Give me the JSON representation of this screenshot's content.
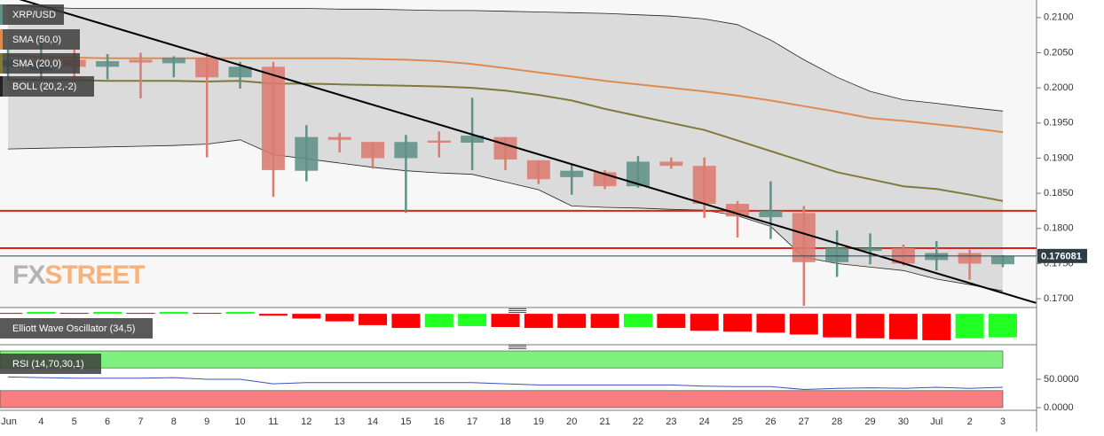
{
  "branding": {
    "watermark_left": "FX",
    "watermark_right": "STREET"
  },
  "chart_data": [
    {
      "type": "candlestick",
      "categories": [
        "Jun",
        "4",
        "5",
        "6",
        "7",
        "8",
        "9",
        "10",
        "11",
        "12",
        "13",
        "14",
        "15",
        "16",
        "17",
        "18",
        "19",
        "20",
        "21",
        "22",
        "23",
        "24",
        "25",
        "26",
        "27",
        "28",
        "29",
        "30",
        "Jul",
        "2",
        "3"
      ],
      "ylim": [
        0.169,
        0.2125
      ],
      "yticks": [
        {
          "value": 0.17,
          "label": "0.1700"
        },
        {
          "value": 0.175,
          "label": "0.1750"
        },
        {
          "value": 0.18,
          "label": "0.1800"
        },
        {
          "value": 0.185,
          "label": "0.1850"
        },
        {
          "value": 0.19,
          "label": "0.1900"
        },
        {
          "value": 0.195,
          "label": "0.1950"
        },
        {
          "value": 0.2,
          "label": "0.2000"
        },
        {
          "value": 0.205,
          "label": "0.2050"
        },
        {
          "value": 0.21,
          "label": "0.2100"
        }
      ],
      "last_price": 0.176081,
      "last_price_color": "#2f3e46",
      "hlines": [
        {
          "value": 0.1825,
          "color": "#e0201b"
        },
        {
          "value": 0.1772,
          "color": "#e0201b"
        }
      ],
      "trendline": {
        "x": [
          0,
          31
        ],
        "y": [
          0.2131,
          0.1694
        ],
        "color": "#000000"
      },
      "series": [
        {
          "name": "XRP/USD",
          "up_color": "#5e9188",
          "down_color": "#dc7b6f",
          "open": [
            0.203,
            0.2025,
            0.204,
            0.203,
            0.204,
            0.2035,
            0.2042,
            0.2015,
            0.203,
            0.1882,
            0.193,
            0.1923,
            0.19,
            0.1925,
            0.1922,
            0.193,
            0.1897,
            0.1873,
            0.188,
            0.186,
            0.1895,
            0.1889,
            0.1835,
            0.1816,
            0.1822,
            0.1752,
            0.1768,
            0.1772,
            0.1755,
            0.1765,
            0.1749
          ],
          "high": [
            0.2055,
            0.2065,
            0.2055,
            0.2048,
            0.205,
            0.2045,
            0.205,
            0.2037,
            0.2037,
            0.1947,
            0.1936,
            0.1923,
            0.1933,
            0.1938,
            0.1986,
            0.193,
            0.1897,
            0.1891,
            0.1883,
            0.1903,
            0.1901,
            0.1901,
            0.1839,
            0.1867,
            0.1832,
            0.1797,
            0.1793,
            0.1777,
            0.1782,
            0.177,
            0.1762
          ],
          "low": [
            0.201,
            0.201,
            0.2005,
            0.2012,
            0.1985,
            0.2015,
            0.1901,
            0.1999,
            0.1845,
            0.1867,
            0.1908,
            0.1885,
            0.1822,
            0.1901,
            0.1883,
            0.1883,
            0.1863,
            0.1848,
            0.1856,
            0.1858,
            0.1885,
            0.1815,
            0.1787,
            0.1785,
            0.169,
            0.1731,
            0.1749,
            0.1747,
            0.174,
            0.1727,
            0.1745
          ],
          "close": [
            0.204,
            0.2035,
            0.203,
            0.2038,
            0.2036,
            0.2043,
            0.2015,
            0.203,
            0.1883,
            0.193,
            0.1926,
            0.19,
            0.1923,
            0.1922,
            0.1932,
            0.1898,
            0.187,
            0.1882,
            0.186,
            0.1895,
            0.1889,
            0.1835,
            0.1817,
            0.1825,
            0.1752,
            0.1772,
            0.1772,
            0.175,
            0.1765,
            0.175,
            0.1761
          ]
        },
        {
          "name": "SMA (50,0)",
          "color": "#e08a4f",
          "values": [
            0.2046,
            0.2044,
            0.2043,
            0.2042,
            0.2042,
            0.2042,
            0.2042,
            0.2042,
            0.2042,
            0.2042,
            0.2042,
            0.2041,
            0.204,
            0.2038,
            0.2034,
            0.2028,
            0.2022,
            0.2016,
            0.201,
            0.2005,
            0.2,
            0.1995,
            0.1989,
            0.1982,
            0.1974,
            0.1966,
            0.1957,
            0.1953,
            0.1948,
            0.1943,
            0.1937
          ]
        },
        {
          "name": "SMA (20,0)",
          "color": "#7f7a3c",
          "values": [
            0.2012,
            0.2011,
            0.2011,
            0.201,
            0.201,
            0.201,
            0.2009,
            0.201,
            0.2006,
            0.2006,
            0.2005,
            0.2004,
            0.2003,
            0.2002,
            0.2,
            0.1996,
            0.199,
            0.1982,
            0.197,
            0.196,
            0.195,
            0.194,
            0.1925,
            0.191,
            0.1895,
            0.188,
            0.187,
            0.186,
            0.1856,
            0.1848,
            0.1839
          ]
        },
        {
          "name": "BOLL (20,2,-2)",
          "color": "#222222",
          "fill": "#d6d6d6",
          "upper": [
            0.2118,
            0.2115,
            0.2113,
            0.2113,
            0.2113,
            0.2113,
            0.2113,
            0.2113,
            0.2113,
            0.2113,
            0.2112,
            0.2112,
            0.2111,
            0.211,
            0.211,
            0.2109,
            0.2108,
            0.2107,
            0.2106,
            0.2104,
            0.2102,
            0.2098,
            0.209,
            0.2068,
            0.204,
            0.2015,
            0.1995,
            0.1983,
            0.1978,
            0.1972,
            0.1967
          ],
          "lower": [
            0.1913,
            0.1914,
            0.1915,
            0.1916,
            0.1917,
            0.1918,
            0.192,
            0.1926,
            0.1905,
            0.1899,
            0.1893,
            0.1887,
            0.1882,
            0.1879,
            0.1877,
            0.1866,
            0.1855,
            0.1832,
            0.183,
            0.1829,
            0.1827,
            0.1826,
            0.1818,
            0.1803,
            0.1759,
            0.175,
            0.1745,
            0.174,
            0.1728,
            0.172,
            0.1711
          ]
        }
      ]
    },
    {
      "type": "bar",
      "title": "Elliott Wave Oscillator (34,5)",
      "up_color": "#22ff22",
      "down_color": "#ff0000",
      "ylim": [
        -0.003,
        0.0002
      ],
      "values": [
        0.0001,
        0.0002,
        0.0001,
        0.0002,
        0.0001,
        0.0002,
        0.0001,
        0.0002,
        -0.0002,
        -0.0005,
        -0.0008,
        -0.0012,
        -0.0015,
        -0.0014,
        -0.0013,
        -0.0014,
        -0.0015,
        -0.0015,
        -0.0015,
        -0.0014,
        -0.0015,
        -0.0018,
        -0.0019,
        -0.002,
        -0.0022,
        -0.0025,
        -0.0026,
        -0.0027,
        -0.0028,
        -0.0026,
        -0.0025
      ]
    },
    {
      "type": "line",
      "title": "RSI (14,70,30,1)",
      "color": "#3b4fc4",
      "ylim": [
        0,
        100
      ],
      "yticks": [
        {
          "value": 0,
          "label": "0.0000"
        },
        {
          "value": 50,
          "label": "50.0000"
        }
      ],
      "bands": [
        {
          "from": 70,
          "to": 100,
          "color": "#7ef07e"
        },
        {
          "from": 0,
          "to": 30,
          "color": "#f77f7f"
        }
      ],
      "values": [
        54,
        53,
        52,
        52,
        52,
        53,
        50,
        50,
        42,
        44,
        44,
        44,
        44,
        44,
        44,
        42,
        40,
        40,
        40,
        40,
        40,
        38,
        37,
        37,
        32,
        34,
        35,
        34,
        36,
        34,
        36
      ]
    }
  ]
}
